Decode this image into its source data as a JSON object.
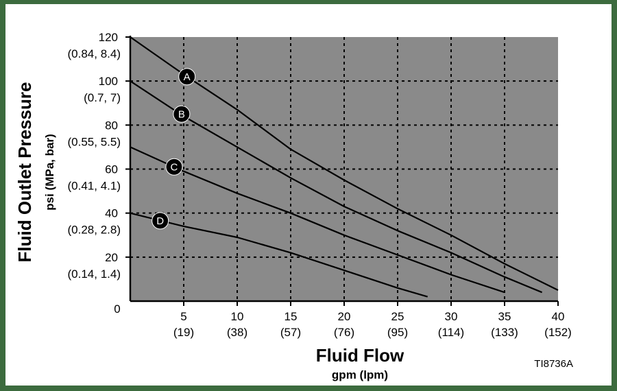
{
  "figure_code": "TI8736A",
  "chart_data": {
    "type": "line",
    "xlabel": "Fluid Flow",
    "xlabel_units": "gpm (lpm)",
    "ylabel": "Fluid Outlet Pressure",
    "ylabel_units": "psi (MPa, bar)",
    "xlim": [
      0,
      40
    ],
    "ylim": [
      0,
      120
    ],
    "grid": true,
    "x_ticks": [
      {
        "value": 0,
        "label": "0",
        "sub": ""
      },
      {
        "value": 5,
        "label": "5",
        "sub": "(19)"
      },
      {
        "value": 10,
        "label": "10",
        "sub": "(38)"
      },
      {
        "value": 15,
        "label": "15",
        "sub": "(57)"
      },
      {
        "value": 20,
        "label": "20",
        "sub": "(76)"
      },
      {
        "value": 25,
        "label": "25",
        "sub": "(95)"
      },
      {
        "value": 30,
        "label": "30",
        "sub": "(114)"
      },
      {
        "value": 35,
        "label": "35",
        "sub": "(133)"
      },
      {
        "value": 40,
        "label": "40",
        "sub": "(152)"
      }
    ],
    "y_ticks": [
      {
        "value": 20,
        "label": "20",
        "sub": "(0.14, 1.4)"
      },
      {
        "value": 40,
        "label": "40",
        "sub": "(0.28, 2.8)"
      },
      {
        "value": 60,
        "label": "60",
        "sub": "(0.41, 4.1)"
      },
      {
        "value": 80,
        "label": "80",
        "sub": "(0.55, 5.5)"
      },
      {
        "value": 100,
        "label": "100",
        "sub": "(0.7, 7)"
      },
      {
        "value": 120,
        "label": "120",
        "sub": "(0.84, 8.4)"
      }
    ],
    "series": [
      {
        "name": "A",
        "marker": [
          5.3,
          102
        ],
        "points": [
          [
            0,
            120
          ],
          [
            5,
            103
          ],
          [
            10,
            87
          ],
          [
            15,
            69
          ],
          [
            20,
            55
          ],
          [
            25,
            42
          ],
          [
            30,
            30
          ],
          [
            35,
            17
          ],
          [
            40,
            5
          ]
        ]
      },
      {
        "name": "B",
        "marker": [
          4.8,
          85
        ],
        "points": [
          [
            0,
            100
          ],
          [
            5,
            84
          ],
          [
            10,
            70
          ],
          [
            15,
            56
          ],
          [
            20,
            43
          ],
          [
            25,
            32
          ],
          [
            30,
            22
          ],
          [
            35,
            11
          ],
          [
            38.5,
            4
          ]
        ]
      },
      {
        "name": "C",
        "marker": [
          4.1,
          61
        ],
        "points": [
          [
            0,
            70
          ],
          [
            5,
            59
          ],
          [
            10,
            49
          ],
          [
            15,
            40
          ],
          [
            20,
            30
          ],
          [
            25,
            21
          ],
          [
            30,
            12
          ],
          [
            35,
            4
          ]
        ]
      },
      {
        "name": "D",
        "marker": [
          2.8,
          36.5
        ],
        "points": [
          [
            0,
            40
          ],
          [
            5,
            34
          ],
          [
            10,
            29
          ],
          [
            15,
            22
          ],
          [
            20,
            14
          ],
          [
            25,
            6
          ],
          [
            27.8,
            2
          ]
        ]
      }
    ],
    "plot_background": "#8a8a8a",
    "line_color": "#000000"
  }
}
